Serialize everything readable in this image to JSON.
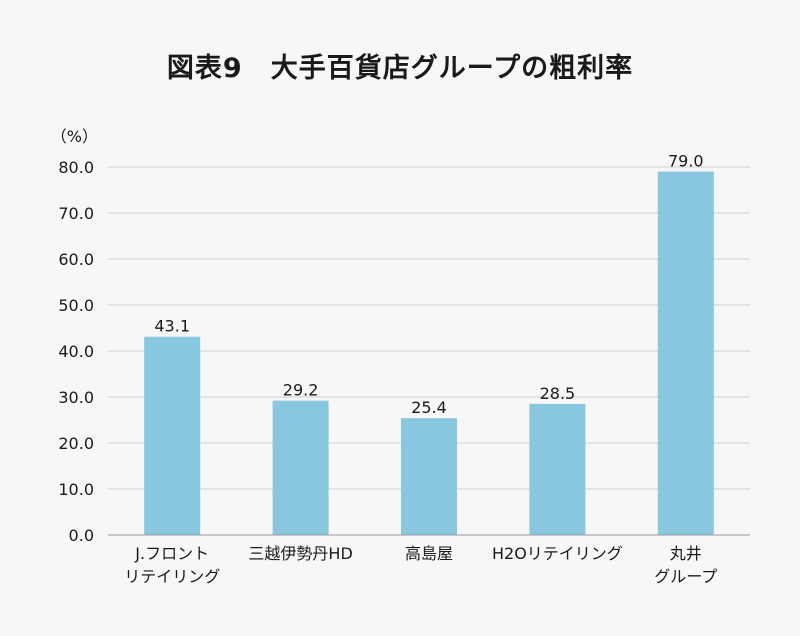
{
  "chart_data": {
    "type": "bar",
    "title": "図表9　大手百貨店グループの粗利率",
    "y_unit_label": "（%）",
    "categories": [
      [
        "J.フロント",
        "リテイリング"
      ],
      [
        "三越伊勢丹HD"
      ],
      [
        "高島屋"
      ],
      [
        "H2Oリテイリング"
      ],
      [
        "丸井",
        "グループ"
      ]
    ],
    "values": [
      43.1,
      29.2,
      25.4,
      28.5,
      79.0
    ],
    "data_labels": [
      "43.1",
      "29.2",
      "25.4",
      "28.5",
      "79.0"
    ],
    "ylim": [
      0,
      80
    ],
    "yticks": [
      "0.0",
      "10.0",
      "20.0",
      "30.0",
      "40.0",
      "50.0",
      "60.0",
      "70.0",
      "80.0"
    ],
    "grid": true,
    "legend": "none",
    "colors": {
      "bar": "#89c6df",
      "grid": "#d0d0d0",
      "axis": "#9a9a9a",
      "background": "#f7f7f7"
    }
  }
}
